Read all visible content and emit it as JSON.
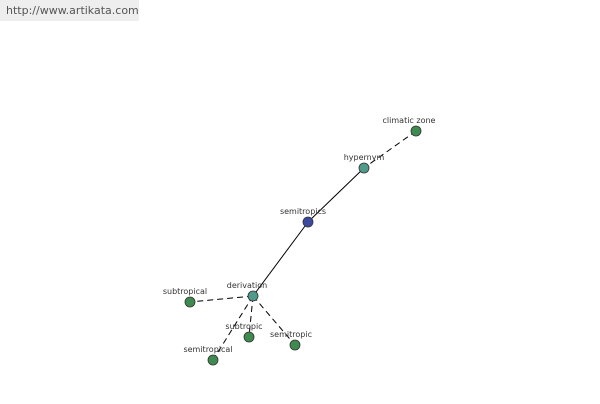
{
  "header": {
    "url": "http://www.artikata.com"
  },
  "nodes": [
    {
      "label": "climatic zone"
    },
    {
      "label": "hypernym"
    },
    {
      "label": "semitropics"
    },
    {
      "label": "derivation"
    },
    {
      "label": "subtropical"
    },
    {
      "label": "subtropic"
    },
    {
      "label": "semitropic"
    },
    {
      "label": "semitropical"
    }
  ]
}
